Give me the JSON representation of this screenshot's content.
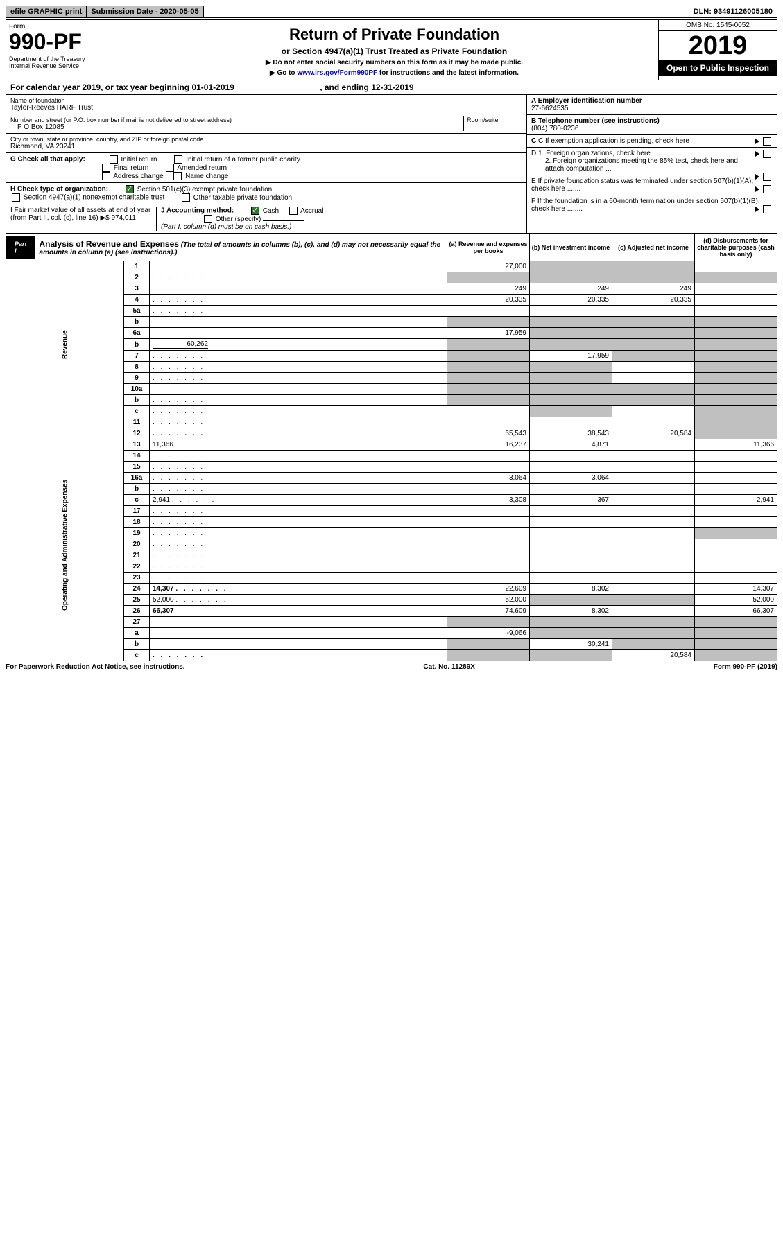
{
  "top": {
    "efile": "efile GRAPHIC print",
    "submission": "Submission Date - 2020-05-05",
    "dln": "DLN: 93491126005180"
  },
  "header": {
    "form": "Form",
    "formNo": "990-PF",
    "dept": "Department of the Treasury\nInternal Revenue Service",
    "title": "Return of Private Foundation",
    "subtitle": "or Section 4947(a)(1) Trust Treated as Private Foundation",
    "note1": "▶ Do not enter social security numbers on this form as it may be made public.",
    "note2": "▶ Go to ",
    "link": "www.irs.gov/Form990PF",
    "note3": " for instructions and the latest information.",
    "omb": "OMB No. 1545-0052",
    "year": "2019",
    "open": "Open to Public Inspection"
  },
  "cal": {
    "text1": "For calendar year 2019, or tax year beginning ",
    "begin": "01-01-2019",
    "text2": ", and ending ",
    "end": "12-31-2019"
  },
  "info": {
    "nameLabel": "Name of foundation",
    "name": "Taylor-Reeves HARF Trust",
    "addrLabel": "Number and street (or P.O. box number if mail is not delivered to street address)",
    "addr": "P O Box 12085",
    "roomLabel": "Room/suite",
    "cityLabel": "City or town, state or province, country, and ZIP or foreign postal code",
    "city": "Richmond, VA  23241",
    "einLabel": "A Employer identification number",
    "ein": "27-6624535",
    "telLabel": "B Telephone number (see instructions)",
    "tel": "(804) 780-0236",
    "cLabel": "C If exemption application is pending, check here",
    "gLabel": "G Check all that apply:",
    "g1": "Initial return",
    "g2": "Initial return of a former public charity",
    "g3": "Final return",
    "g4": "Amended return",
    "g5": "Address change",
    "g6": "Name change",
    "d1": "D 1. Foreign organizations, check here............",
    "d2": "2. Foreign organizations meeting the 85% test, check here and attach computation ...",
    "hLabel": "H Check type of organization:",
    "h1": "Section 501(c)(3) exempt private foundation",
    "h2": "Section 4947(a)(1) nonexempt charitable trust",
    "h3": "Other taxable private foundation",
    "eLabel": "E  If private foundation status was terminated under section 507(b)(1)(A), check here .......",
    "iLabel": "I Fair market value of all assets at end of year (from Part II, col. (c), line 16) ▶$",
    "iVal": "974,011",
    "jLabel": "J Accounting method:",
    "j1": "Cash",
    "j2": "Accrual",
    "j3": "Other (specify)",
    "jNote": "(Part I, column (d) must be on cash basis.)",
    "fLabel": "F  If the foundation is in a 60-month termination under section 507(b)(1)(B), check here ........"
  },
  "part1": {
    "label": "Part I",
    "title": "Analysis of Revenue and Expenses",
    "note": "(The total of amounts in columns (b), (c), and (d) may not necessarily equal the amounts in column (a) (see instructions).)",
    "colA": "(a)   Revenue and expenses per books",
    "colB": "(b)  Net investment income",
    "colC": "(c)  Adjusted net income",
    "colD": "(d)  Disbursements for charitable purposes (cash basis only)"
  },
  "revLabel": "Revenue",
  "expLabel": "Operating and Administrative Expenses",
  "rows": [
    {
      "n": "1",
      "d": "",
      "a": "27,000",
      "b": "",
      "c": "",
      "bg": [
        "",
        "grey",
        "grey",
        ""
      ]
    },
    {
      "n": "2",
      "d": "",
      "dots": true,
      "a": "",
      "b": "",
      "c": "",
      "bg": [
        "grey",
        "grey",
        "grey",
        "grey"
      ]
    },
    {
      "n": "3",
      "d": "",
      "a": "249",
      "b": "249",
      "c": "249"
    },
    {
      "n": "4",
      "d": "",
      "dots": true,
      "a": "20,335",
      "b": "20,335",
      "c": "20,335"
    },
    {
      "n": "5a",
      "d": "",
      "dots": true,
      "a": "",
      "b": "",
      "c": ""
    },
    {
      "n": "b",
      "d": "",
      "a": "",
      "b": "",
      "c": "",
      "bg": [
        "grey",
        "grey",
        "grey",
        "grey"
      ]
    },
    {
      "n": "6a",
      "d": "",
      "a": "17,959",
      "b": "",
      "c": "",
      "bg": [
        "",
        "grey",
        "grey",
        "grey"
      ]
    },
    {
      "n": "b",
      "d": "",
      "sub": "60,262",
      "a": "",
      "b": "",
      "c": "",
      "bg": [
        "grey",
        "grey",
        "grey",
        "grey"
      ]
    },
    {
      "n": "7",
      "d": "",
      "dots": true,
      "a": "",
      "b": "17,959",
      "c": "",
      "bg": [
        "grey",
        "",
        "grey",
        "grey"
      ]
    },
    {
      "n": "8",
      "d": "",
      "dots": true,
      "a": "",
      "b": "",
      "c": "",
      "bg": [
        "grey",
        "grey",
        "",
        "grey"
      ]
    },
    {
      "n": "9",
      "d": "",
      "dots": true,
      "a": "",
      "b": "",
      "c": "",
      "bg": [
        "grey",
        "grey",
        "",
        "grey"
      ]
    },
    {
      "n": "10a",
      "d": "",
      "a": "",
      "b": "",
      "c": "",
      "bg": [
        "grey",
        "grey",
        "grey",
        "grey"
      ]
    },
    {
      "n": "b",
      "d": "",
      "dots": true,
      "a": "",
      "b": "",
      "c": "",
      "bg": [
        "grey",
        "grey",
        "grey",
        "grey"
      ]
    },
    {
      "n": "c",
      "d": "",
      "dots": true,
      "a": "",
      "b": "",
      "c": "",
      "bg": [
        "",
        "grey",
        "",
        "grey"
      ]
    },
    {
      "n": "11",
      "d": "",
      "dots": true,
      "a": "",
      "b": "",
      "c": "",
      "bg": [
        "",
        "",
        "",
        "grey"
      ]
    },
    {
      "n": "12",
      "d": "",
      "dots": true,
      "bold": true,
      "a": "65,543",
      "b": "38,543",
      "c": "20,584",
      "bg": [
        "",
        "",
        "",
        "grey"
      ]
    },
    {
      "n": "13",
      "d": "11,366",
      "a": "16,237",
      "b": "4,871",
      "c": ""
    },
    {
      "n": "14",
      "d": "",
      "dots": true,
      "a": "",
      "b": "",
      "c": ""
    },
    {
      "n": "15",
      "d": "",
      "dots": true,
      "a": "",
      "b": "",
      "c": ""
    },
    {
      "n": "16a",
      "d": "",
      "dots": true,
      "a": "3,064",
      "b": "3,064",
      "c": ""
    },
    {
      "n": "b",
      "d": "",
      "dots": true,
      "a": "",
      "b": "",
      "c": ""
    },
    {
      "n": "c",
      "d": "2,941",
      "dots": true,
      "a": "3,308",
      "b": "367",
      "c": ""
    },
    {
      "n": "17",
      "d": "",
      "dots": true,
      "a": "",
      "b": "",
      "c": ""
    },
    {
      "n": "18",
      "d": "",
      "dots": true,
      "a": "",
      "b": "",
      "c": ""
    },
    {
      "n": "19",
      "d": "",
      "dots": true,
      "a": "",
      "b": "",
      "c": "",
      "bg": [
        "",
        "",
        "",
        "grey"
      ]
    },
    {
      "n": "20",
      "d": "",
      "dots": true,
      "a": "",
      "b": "",
      "c": ""
    },
    {
      "n": "21",
      "d": "",
      "dots": true,
      "a": "",
      "b": "",
      "c": ""
    },
    {
      "n": "22",
      "d": "",
      "dots": true,
      "a": "",
      "b": "",
      "c": ""
    },
    {
      "n": "23",
      "d": "",
      "dots": true,
      "a": "",
      "b": "",
      "c": ""
    },
    {
      "n": "24",
      "d": "14,307",
      "dots": true,
      "bold": true,
      "a": "22,609",
      "b": "8,302",
      "c": ""
    },
    {
      "n": "25",
      "d": "52,000",
      "dots": true,
      "a": "52,000",
      "b": "",
      "c": "",
      "bg": [
        "",
        "grey",
        "grey",
        ""
      ]
    },
    {
      "n": "26",
      "d": "66,307",
      "bold": true,
      "a": "74,609",
      "b": "8,302",
      "c": ""
    },
    {
      "n": "27",
      "d": "",
      "a": "",
      "b": "",
      "c": "",
      "bg": [
        "grey",
        "grey",
        "grey",
        "grey"
      ]
    },
    {
      "n": "a",
      "d": "",
      "bold": true,
      "a": "-9,066",
      "b": "",
      "c": "",
      "bg": [
        "",
        "grey",
        "grey",
        "grey"
      ]
    },
    {
      "n": "b",
      "d": "",
      "bold": true,
      "a": "",
      "b": "30,241",
      "c": "",
      "bg": [
        "grey",
        "",
        "grey",
        "grey"
      ]
    },
    {
      "n": "c",
      "d": "",
      "dots": true,
      "bold": true,
      "a": "",
      "b": "",
      "c": "20,584",
      "bg": [
        "grey",
        "grey",
        "",
        "grey"
      ]
    }
  ],
  "footer": {
    "left": "For Paperwork Reduction Act Notice, see instructions.",
    "mid": "Cat. No. 11289X",
    "right": "Form 990-PF (2019)"
  }
}
